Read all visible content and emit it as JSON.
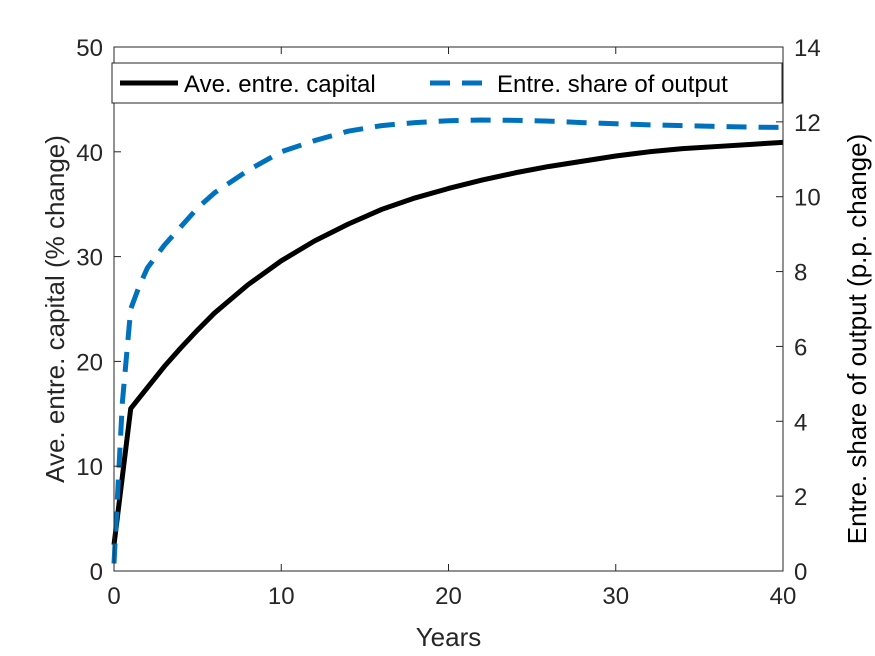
{
  "chart_data": {
    "type": "line",
    "xlabel": "Years",
    "ylabel": "Ave. entre. capital (% change)",
    "ylabel_right": "Entre. share of output (p.p. change)",
    "xlim": [
      0,
      40
    ],
    "ylim": [
      0,
      50
    ],
    "ylim_right": [
      0,
      14
    ],
    "x_ticks": [
      "0",
      "10",
      "20",
      "30",
      "40"
    ],
    "y_ticks": [
      "0",
      "10",
      "20",
      "30",
      "40",
      "50"
    ],
    "y_ticks_right": [
      "0",
      "2",
      "4",
      "6",
      "8",
      "10",
      "12",
      "14"
    ],
    "grid": false,
    "legend_position": "top",
    "series": [
      {
        "name": "Ave. entre. capital",
        "axis": "left",
        "color": "#000000",
        "style": "solid",
        "x": [
          0,
          1,
          2,
          3,
          4,
          5,
          6,
          8,
          10,
          12,
          14,
          16,
          18,
          20,
          22,
          24,
          26,
          28,
          30,
          32,
          34,
          36,
          38,
          40
        ],
        "y": [
          2.5,
          15.5,
          17.5,
          19.5,
          21.3,
          23.0,
          24.6,
          27.3,
          29.6,
          31.5,
          33.1,
          34.5,
          35.6,
          36.5,
          37.3,
          38.0,
          38.6,
          39.1,
          39.6,
          40.0,
          40.3,
          40.5,
          40.7,
          40.9
        ]
      },
      {
        "name": "Entre. share of output",
        "axis": "right",
        "color": "#0072BD",
        "style": "dashed",
        "x": [
          0,
          0.5,
          1,
          1.5,
          2,
          3,
          4,
          5,
          6,
          8,
          10,
          12,
          14,
          16,
          18,
          20,
          22,
          24,
          26,
          28,
          30,
          32,
          34,
          36,
          38,
          40
        ],
        "y": [
          0.2,
          4.5,
          7.0,
          7.6,
          8.1,
          8.7,
          9.2,
          9.7,
          10.1,
          10.7,
          11.2,
          11.5,
          11.75,
          11.9,
          11.98,
          12.03,
          12.05,
          12.04,
          12.02,
          11.98,
          11.95,
          11.92,
          11.9,
          11.88,
          11.86,
          11.85
        ]
      }
    ]
  }
}
